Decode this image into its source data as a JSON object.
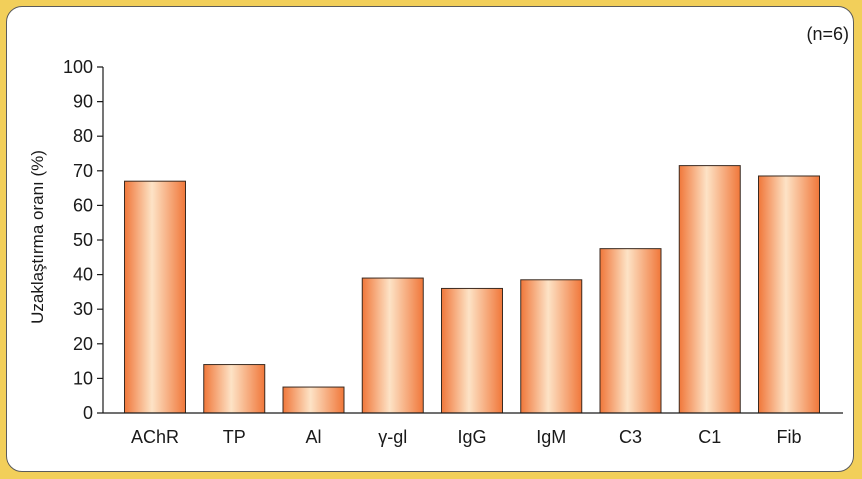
{
  "chart_data": {
    "type": "bar",
    "categories": [
      "AChR",
      "TP",
      "Al",
      "γ-gl",
      "IgG",
      "IgM",
      "C3",
      "C1",
      "Fib"
    ],
    "values": [
      67,
      14,
      7.5,
      39,
      36,
      38.5,
      47.5,
      71.5,
      68.5
    ],
    "title": "",
    "xlabel": "",
    "ylabel": "Uzaklaştırma oranı (%)",
    "ylim": [
      0,
      100
    ],
    "yticks": [
      0,
      10,
      20,
      30,
      40,
      50,
      60,
      70,
      80,
      90,
      100
    ],
    "annotation": "(n=6)",
    "grid": false,
    "legend": "none",
    "bar_color_light": "#fde3c6",
    "bar_color_dark": "#f0773a",
    "frame_color": "#f2cf5a"
  }
}
